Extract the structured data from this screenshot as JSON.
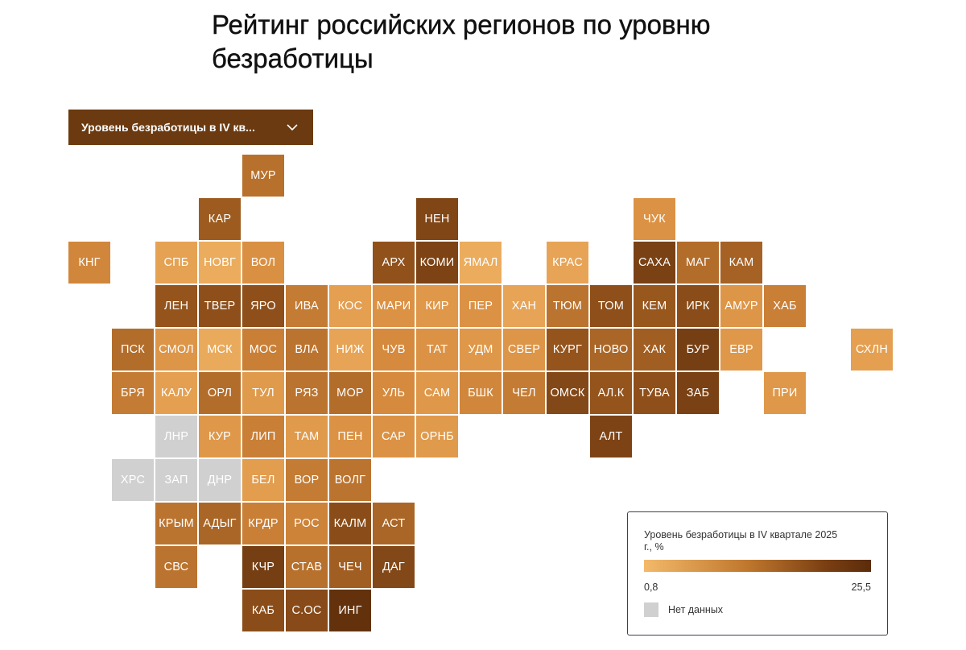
{
  "title": "Рейтинг российских регионов по уровню безработицы",
  "dropdown": {
    "label": "Уровень безработицы в IV кв..."
  },
  "legend": {
    "title": "Уровень безработицы в IV квартале 2025 г., %",
    "min_label": "0,8",
    "max_label": "25,5",
    "no_data_label": "Нет данных"
  },
  "colors": {
    "scale_low": "#f3b96a",
    "scale_high": "#5b2c0b",
    "no_data": "#d0d0d0"
  },
  "chart_data": {
    "type": "heatmap",
    "variant": "tile-grid map",
    "color_min": 0.8,
    "color_max": 25.5,
    "tiles": [
      {
        "label": "МУР",
        "col": 4,
        "row": 0,
        "level": 0.5
      },
      {
        "label": "КАР",
        "col": 3,
        "row": 1,
        "level": 0.62
      },
      {
        "label": "НЕН",
        "col": 8,
        "row": 1,
        "level": 0.78
      },
      {
        "label": "ЧУК",
        "col": 13,
        "row": 1,
        "level": 0.3
      },
      {
        "label": "КНГ",
        "col": 0,
        "row": 2,
        "level": 0.38
      },
      {
        "label": "СПБ",
        "col": 2,
        "row": 2,
        "level": 0.18
      },
      {
        "label": "НОВГ",
        "col": 3,
        "row": 2,
        "level": 0.1
      },
      {
        "label": "ВОЛ",
        "col": 4,
        "row": 2,
        "level": 0.32
      },
      {
        "label": "АРХ",
        "col": 7,
        "row": 2,
        "level": 0.68
      },
      {
        "label": "КОМИ",
        "col": 8,
        "row": 2,
        "level": 0.8
      },
      {
        "label": "ЯМАЛ",
        "col": 9,
        "row": 2,
        "level": 0.1
      },
      {
        "label": "КРАС",
        "col": 11,
        "row": 2,
        "level": 0.16
      },
      {
        "label": "САХА",
        "col": 13,
        "row": 2,
        "level": 0.82
      },
      {
        "label": "МАГ",
        "col": 14,
        "row": 2,
        "level": 0.52
      },
      {
        "label": "КАМ",
        "col": 15,
        "row": 2,
        "level": 0.58
      },
      {
        "label": "ЛЕН",
        "col": 2,
        "row": 3,
        "level": 0.66
      },
      {
        "label": "ТВЕР",
        "col": 3,
        "row": 3,
        "level": 0.7
      },
      {
        "label": "ЯРО",
        "col": 4,
        "row": 3,
        "level": 0.7
      },
      {
        "label": "ИВА",
        "col": 5,
        "row": 3,
        "level": 0.44
      },
      {
        "label": "КОС",
        "col": 6,
        "row": 3,
        "level": 0.2
      },
      {
        "label": "МАРИ",
        "col": 7,
        "row": 3,
        "level": 0.3
      },
      {
        "label": "КИР",
        "col": 8,
        "row": 3,
        "level": 0.26
      },
      {
        "label": "ПЕР",
        "col": 9,
        "row": 3,
        "level": 0.3
      },
      {
        "label": "ХАН",
        "col": 10,
        "row": 3,
        "level": 0.16
      },
      {
        "label": "ТЮМ",
        "col": 11,
        "row": 3,
        "level": 0.48
      },
      {
        "label": "ТОМ",
        "col": 12,
        "row": 3,
        "level": 0.7
      },
      {
        "label": "КЕМ",
        "col": 13,
        "row": 3,
        "level": 0.64
      },
      {
        "label": "ИРК",
        "col": 14,
        "row": 3,
        "level": 0.72
      },
      {
        "label": "АМУР",
        "col": 15,
        "row": 3,
        "level": 0.28
      },
      {
        "label": "ХАБ",
        "col": 16,
        "row": 3,
        "level": 0.42
      },
      {
        "label": "ПСК",
        "col": 1,
        "row": 4,
        "level": 0.52
      },
      {
        "label": "СМОЛ",
        "col": 2,
        "row": 4,
        "level": 0.28
      },
      {
        "label": "МСК",
        "col": 3,
        "row": 4,
        "level": 0.12
      },
      {
        "label": "МОС",
        "col": 4,
        "row": 4,
        "level": 0.42
      },
      {
        "label": "ВЛА",
        "col": 5,
        "row": 4,
        "level": 0.48
      },
      {
        "label": "НИЖ",
        "col": 6,
        "row": 4,
        "level": 0.16
      },
      {
        "label": "ЧУВ",
        "col": 7,
        "row": 4,
        "level": 0.36
      },
      {
        "label": "ТАТ",
        "col": 8,
        "row": 4,
        "level": 0.3
      },
      {
        "label": "УДМ",
        "col": 9,
        "row": 4,
        "level": 0.26
      },
      {
        "label": "СВЕР",
        "col": 10,
        "row": 4,
        "level": 0.28
      },
      {
        "label": "КУРГ",
        "col": 11,
        "row": 4,
        "level": 0.66
      },
      {
        "label": "НОВО",
        "col": 12,
        "row": 4,
        "level": 0.56
      },
      {
        "label": "ХАК",
        "col": 13,
        "row": 4,
        "level": 0.6
      },
      {
        "label": "БУР",
        "col": 14,
        "row": 4,
        "level": 0.84
      },
      {
        "label": "ЕВР",
        "col": 15,
        "row": 4,
        "level": 0.26
      },
      {
        "label": "СХЛН",
        "col": 18,
        "row": 4,
        "level": 0.2
      },
      {
        "label": "БРЯ",
        "col": 1,
        "row": 5,
        "level": 0.44
      },
      {
        "label": "КАЛУ",
        "col": 2,
        "row": 5,
        "level": 0.2
      },
      {
        "label": "ОРЛ",
        "col": 3,
        "row": 5,
        "level": 0.52
      },
      {
        "label": "ТУЛ",
        "col": 4,
        "row": 5,
        "level": 0.24
      },
      {
        "label": "РЯЗ",
        "col": 5,
        "row": 5,
        "level": 0.48
      },
      {
        "label": "МОР",
        "col": 6,
        "row": 5,
        "level": 0.52
      },
      {
        "label": "УЛЬ",
        "col": 7,
        "row": 5,
        "level": 0.36
      },
      {
        "label": "САМ",
        "col": 8,
        "row": 5,
        "level": 0.26
      },
      {
        "label": "БШК",
        "col": 9,
        "row": 5,
        "level": 0.38
      },
      {
        "label": "ЧЕЛ",
        "col": 10,
        "row": 5,
        "level": 0.44
      },
      {
        "label": "ОМСК",
        "col": 11,
        "row": 5,
        "level": 0.76
      },
      {
        "label": "АЛ.К",
        "col": 12,
        "row": 5,
        "level": 0.66
      },
      {
        "label": "ТУВА",
        "col": 13,
        "row": 5,
        "level": 0.7
      },
      {
        "label": "ЗАБ",
        "col": 14,
        "row": 5,
        "level": 0.82
      },
      {
        "label": "ПРИ",
        "col": 16,
        "row": 5,
        "level": 0.26
      },
      {
        "label": "ЛНР",
        "col": 2,
        "row": 6,
        "level": null
      },
      {
        "label": "КУР",
        "col": 3,
        "row": 6,
        "level": 0.26
      },
      {
        "label": "ЛИП",
        "col": 4,
        "row": 6,
        "level": 0.42
      },
      {
        "label": "ТАМ",
        "col": 5,
        "row": 6,
        "level": 0.24
      },
      {
        "label": "ПЕН",
        "col": 6,
        "row": 6,
        "level": 0.3
      },
      {
        "label": "САР",
        "col": 7,
        "row": 6,
        "level": 0.3
      },
      {
        "label": "ОРНБ",
        "col": 8,
        "row": 6,
        "level": 0.24
      },
      {
        "label": "АЛТ",
        "col": 12,
        "row": 6,
        "level": 0.8
      },
      {
        "label": "ХРС",
        "col": 1,
        "row": 7,
        "level": null
      },
      {
        "label": "ЗАП",
        "col": 2,
        "row": 7,
        "level": null
      },
      {
        "label": "ДНР",
        "col": 3,
        "row": 7,
        "level": null
      },
      {
        "label": "БЕЛ",
        "col": 4,
        "row": 7,
        "level": 0.22
      },
      {
        "label": "ВОР",
        "col": 5,
        "row": 7,
        "level": 0.44
      },
      {
        "label": "ВОЛГ",
        "col": 6,
        "row": 7,
        "level": 0.48
      },
      {
        "label": "КРЫМ",
        "col": 2,
        "row": 8,
        "level": 0.48
      },
      {
        "label": "АДЫГ",
        "col": 3,
        "row": 8,
        "level": 0.56
      },
      {
        "label": "КРДР",
        "col": 4,
        "row": 8,
        "level": 0.42
      },
      {
        "label": "РОС",
        "col": 5,
        "row": 8,
        "level": 0.4
      },
      {
        "label": "КАЛМ",
        "col": 6,
        "row": 8,
        "level": 0.72
      },
      {
        "label": "АСТ",
        "col": 7,
        "row": 8,
        "level": 0.56
      },
      {
        "label": "СВС",
        "col": 2,
        "row": 9,
        "level": 0.48
      },
      {
        "label": "КЧР",
        "col": 4,
        "row": 9,
        "level": 0.84
      },
      {
        "label": "СТАВ",
        "col": 5,
        "row": 9,
        "level": 0.5
      },
      {
        "label": "ЧЕЧ",
        "col": 6,
        "row": 9,
        "level": 0.6
      },
      {
        "label": "ДАГ",
        "col": 7,
        "row": 9,
        "level": 0.76
      },
      {
        "label": "КАБ",
        "col": 4,
        "row": 10,
        "level": 0.72
      },
      {
        "label": "С.ОС",
        "col": 5,
        "row": 10,
        "level": 0.74
      },
      {
        "label": "ИНГ",
        "col": 6,
        "row": 10,
        "level": 0.95
      }
    ]
  }
}
